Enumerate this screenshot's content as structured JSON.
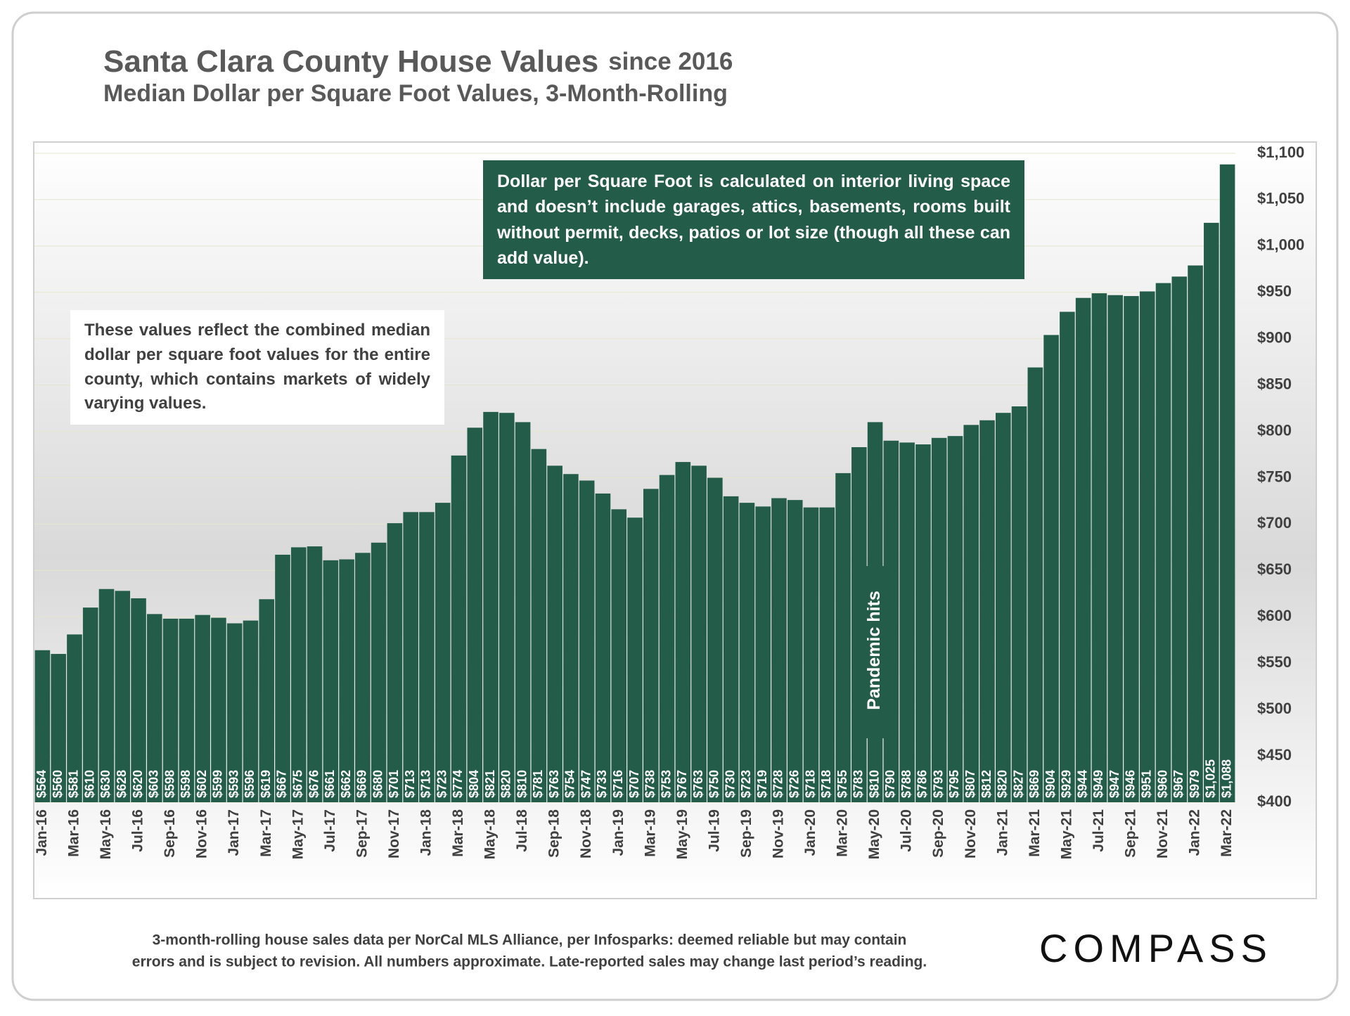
{
  "chart_data": {
    "type": "bar",
    "title": "Santa Clara County House Values",
    "title_note": "since 2016",
    "subtitle": "Median Dollar per Square Foot Values, 3-Month-Rolling",
    "annotations": [
      "Dollar per Square Foot is calculated on interior living space and doesn’t include garages, attics, basements, rooms built without permit, decks, patios or lot size (though all these can add value).",
      "These values reflect the combined median dollar per square foot values for the entire county, which contains markets of widely varying values.",
      "Pandemic hits"
    ],
    "categories": [
      "Jan-16",
      null,
      "Mar-16",
      null,
      "May-16",
      null,
      "Jul-16",
      null,
      "Sep-16",
      null,
      "Nov-16",
      null,
      "Jan-17",
      null,
      "Mar-17",
      null,
      "May-17",
      null,
      "Jul-17",
      null,
      "Sep-17",
      null,
      "Nov-17",
      null,
      "Jan-18",
      null,
      "Mar-18",
      null,
      "May-18",
      null,
      "Jul-18",
      null,
      "Sep-18",
      null,
      "Nov-18",
      null,
      "Jan-19",
      null,
      "Mar-19",
      null,
      "May-19",
      null,
      "Jul-19",
      null,
      "Sep-19",
      null,
      "Nov-19",
      null,
      "Jan-20",
      null,
      "Mar-20",
      null,
      "May-20",
      null,
      "Jul-20",
      null,
      "Sep-20",
      null,
      "Nov-20",
      null,
      "Jan-21",
      null,
      "Mar-21",
      null,
      "May-21",
      null,
      "Jul-21",
      null,
      "Sep-21",
      null,
      "Nov-21",
      null,
      "Jan-22",
      null,
      "Mar-22"
    ],
    "values": [
      564,
      560,
      581,
      610,
      630,
      628,
      620,
      603,
      598,
      598,
      602,
      599,
      593,
      596,
      619,
      667,
      675,
      676,
      661,
      662,
      669,
      680,
      701,
      713,
      713,
      723,
      774,
      804,
      821,
      820,
      810,
      781,
      763,
      754,
      747,
      733,
      716,
      707,
      738,
      753,
      767,
      763,
      750,
      730,
      723,
      719,
      728,
      726,
      718,
      718,
      755,
      783,
      810,
      790,
      788,
      786,
      793,
      795,
      807,
      812,
      820,
      827,
      869,
      904,
      929,
      944,
      949,
      947,
      946,
      951,
      960,
      967,
      979,
      1025,
      1088
    ],
    "value_labels": [
      "$564",
      "$560",
      "$581",
      "$610",
      "$630",
      "$628",
      "$620",
      "$603",
      "$598",
      "$598",
      "$602",
      "$599",
      "$593",
      "$596",
      "$619",
      "$667",
      "$675",
      "$676",
      "$661",
      "$662",
      "$669",
      "$680",
      "$701",
      "$713",
      "$713",
      "$723",
      "$774",
      "$804",
      "$821",
      "$820",
      "$810",
      "$781",
      "$763",
      "$754",
      "$747",
      "$733",
      "$716",
      "$707",
      "$738",
      "$753",
      "$767",
      "$763",
      "$750",
      "$730",
      "$723",
      "$719",
      "$728",
      "$726",
      "$718",
      "$718",
      "$755",
      "$783",
      "$810",
      "$790",
      "$788",
      "$786",
      "$793",
      "$795",
      "$807",
      "$812",
      "$820",
      "$827",
      "$869",
      "$904",
      "$929",
      "$944",
      "$949",
      "$947",
      "$946",
      "$951",
      "$960",
      "$967",
      "$979",
      "$1,025",
      "$1,088"
    ],
    "color": "#245c4a",
    "ylim": [
      400,
      1100
    ],
    "yticks": [
      {
        "value": 400,
        "label": "$400"
      },
      {
        "value": 450,
        "label": "$450"
      },
      {
        "value": 500,
        "label": "$500"
      },
      {
        "value": 550,
        "label": "$550"
      },
      {
        "value": 600,
        "label": "$600"
      },
      {
        "value": 650,
        "label": "$650"
      },
      {
        "value": 700,
        "label": "$700"
      },
      {
        "value": 750,
        "label": "$750"
      },
      {
        "value": 800,
        "label": "$800"
      },
      {
        "value": 850,
        "label": "$850"
      },
      {
        "value": 900,
        "label": "$900"
      },
      {
        "value": 950,
        "label": "$950"
      },
      {
        "value": 1000,
        "label": "$1,000"
      },
      {
        "value": 1050,
        "label": "$1,050"
      },
      {
        "value": 1100,
        "label": "$1,100"
      }
    ],
    "grid": true
  },
  "footer": [
    "3-month-rolling house sales data per NorCal MLS Alliance, per Infosparks:  deemed reliable but may contain",
    "errors and is subject to revision. All numbers approximate. Late-reported sales may change last period’s reading."
  ],
  "logo": "COMPASS"
}
